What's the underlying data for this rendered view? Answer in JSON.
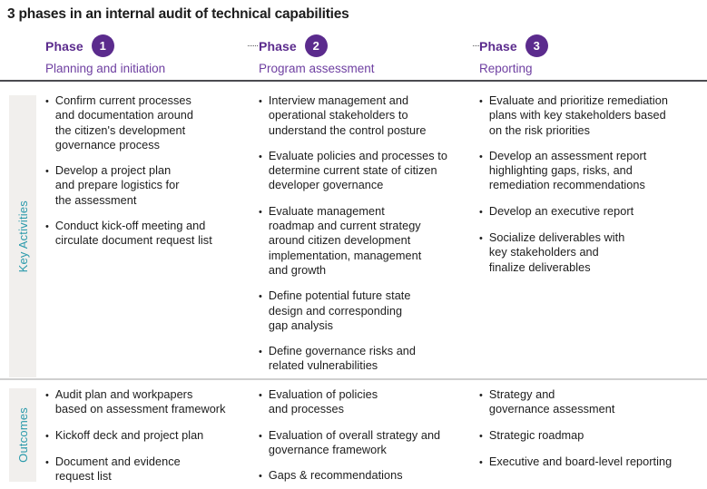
{
  "title": "3 phases in an internal audit of technical capabilities",
  "phases": [
    {
      "label": "Phase",
      "number": "1",
      "subtitle": "Planning and initiation"
    },
    {
      "label": "Phase",
      "number": "2",
      "subtitle": "Program assessment"
    },
    {
      "label": "Phase",
      "number": "3",
      "subtitle": "Reporting"
    }
  ],
  "sections": [
    {
      "label": "Key Activities",
      "columns": [
        [
          "Confirm current processes\nand documentation around\nthe citizen's development\ngovernance process",
          "Develop a project plan\nand prepare logistics for\nthe assessment",
          "Conduct kick-off meeting and\ncirculate document request list"
        ],
        [
          "Interview management and\noperational stakeholders to\nunderstand the control posture",
          "Evaluate policies and processes to\ndetermine current state of citizen\ndeveloper governance",
          "Evaluate management\nroadmap and current strategy\naround citizen development\nimplementation, management\nand growth",
          "Define potential future state\ndesign and corresponding\ngap analysis",
          "Define governance risks and\nrelated vulnerabilities"
        ],
        [
          "Evaluate and prioritize remediation\nplans with key stakeholders based\non the risk priorities",
          "Develop an assessment report\nhighlighting gaps, risks, and\nremediation recommendations",
          "Develop an executive report",
          "Socialize deliverables with\nkey stakeholders and\nfinalize deliverables"
        ]
      ]
    },
    {
      "label": "Outcomes",
      "columns": [
        [
          "Audit plan and workpapers\nbased on assessment framework",
          "Kickoff deck and project plan",
          "Document and evidence\nrequest list"
        ],
        [
          "Evaluation of policies\nand processes",
          "Evaluation of overall strategy and\ngovernance framework",
          "Gaps & recommendations"
        ],
        [
          "Strategy and\ngovernance assessment",
          "Strategic roadmap",
          "Executive and board-level reporting"
        ]
      ]
    }
  ],
  "bullet_glyph": "•",
  "colors": {
    "purple": "#5b2b8d",
    "purple_light": "#6e3fa1",
    "teal": "#2b9aab",
    "strip_bg": "#f1efed",
    "divider_dark": "#4b4b50",
    "divider_light": "#cfcfcf",
    "text": "#1c1c1c",
    "dotted_line": "#59595c",
    "background": "#ffffff"
  }
}
